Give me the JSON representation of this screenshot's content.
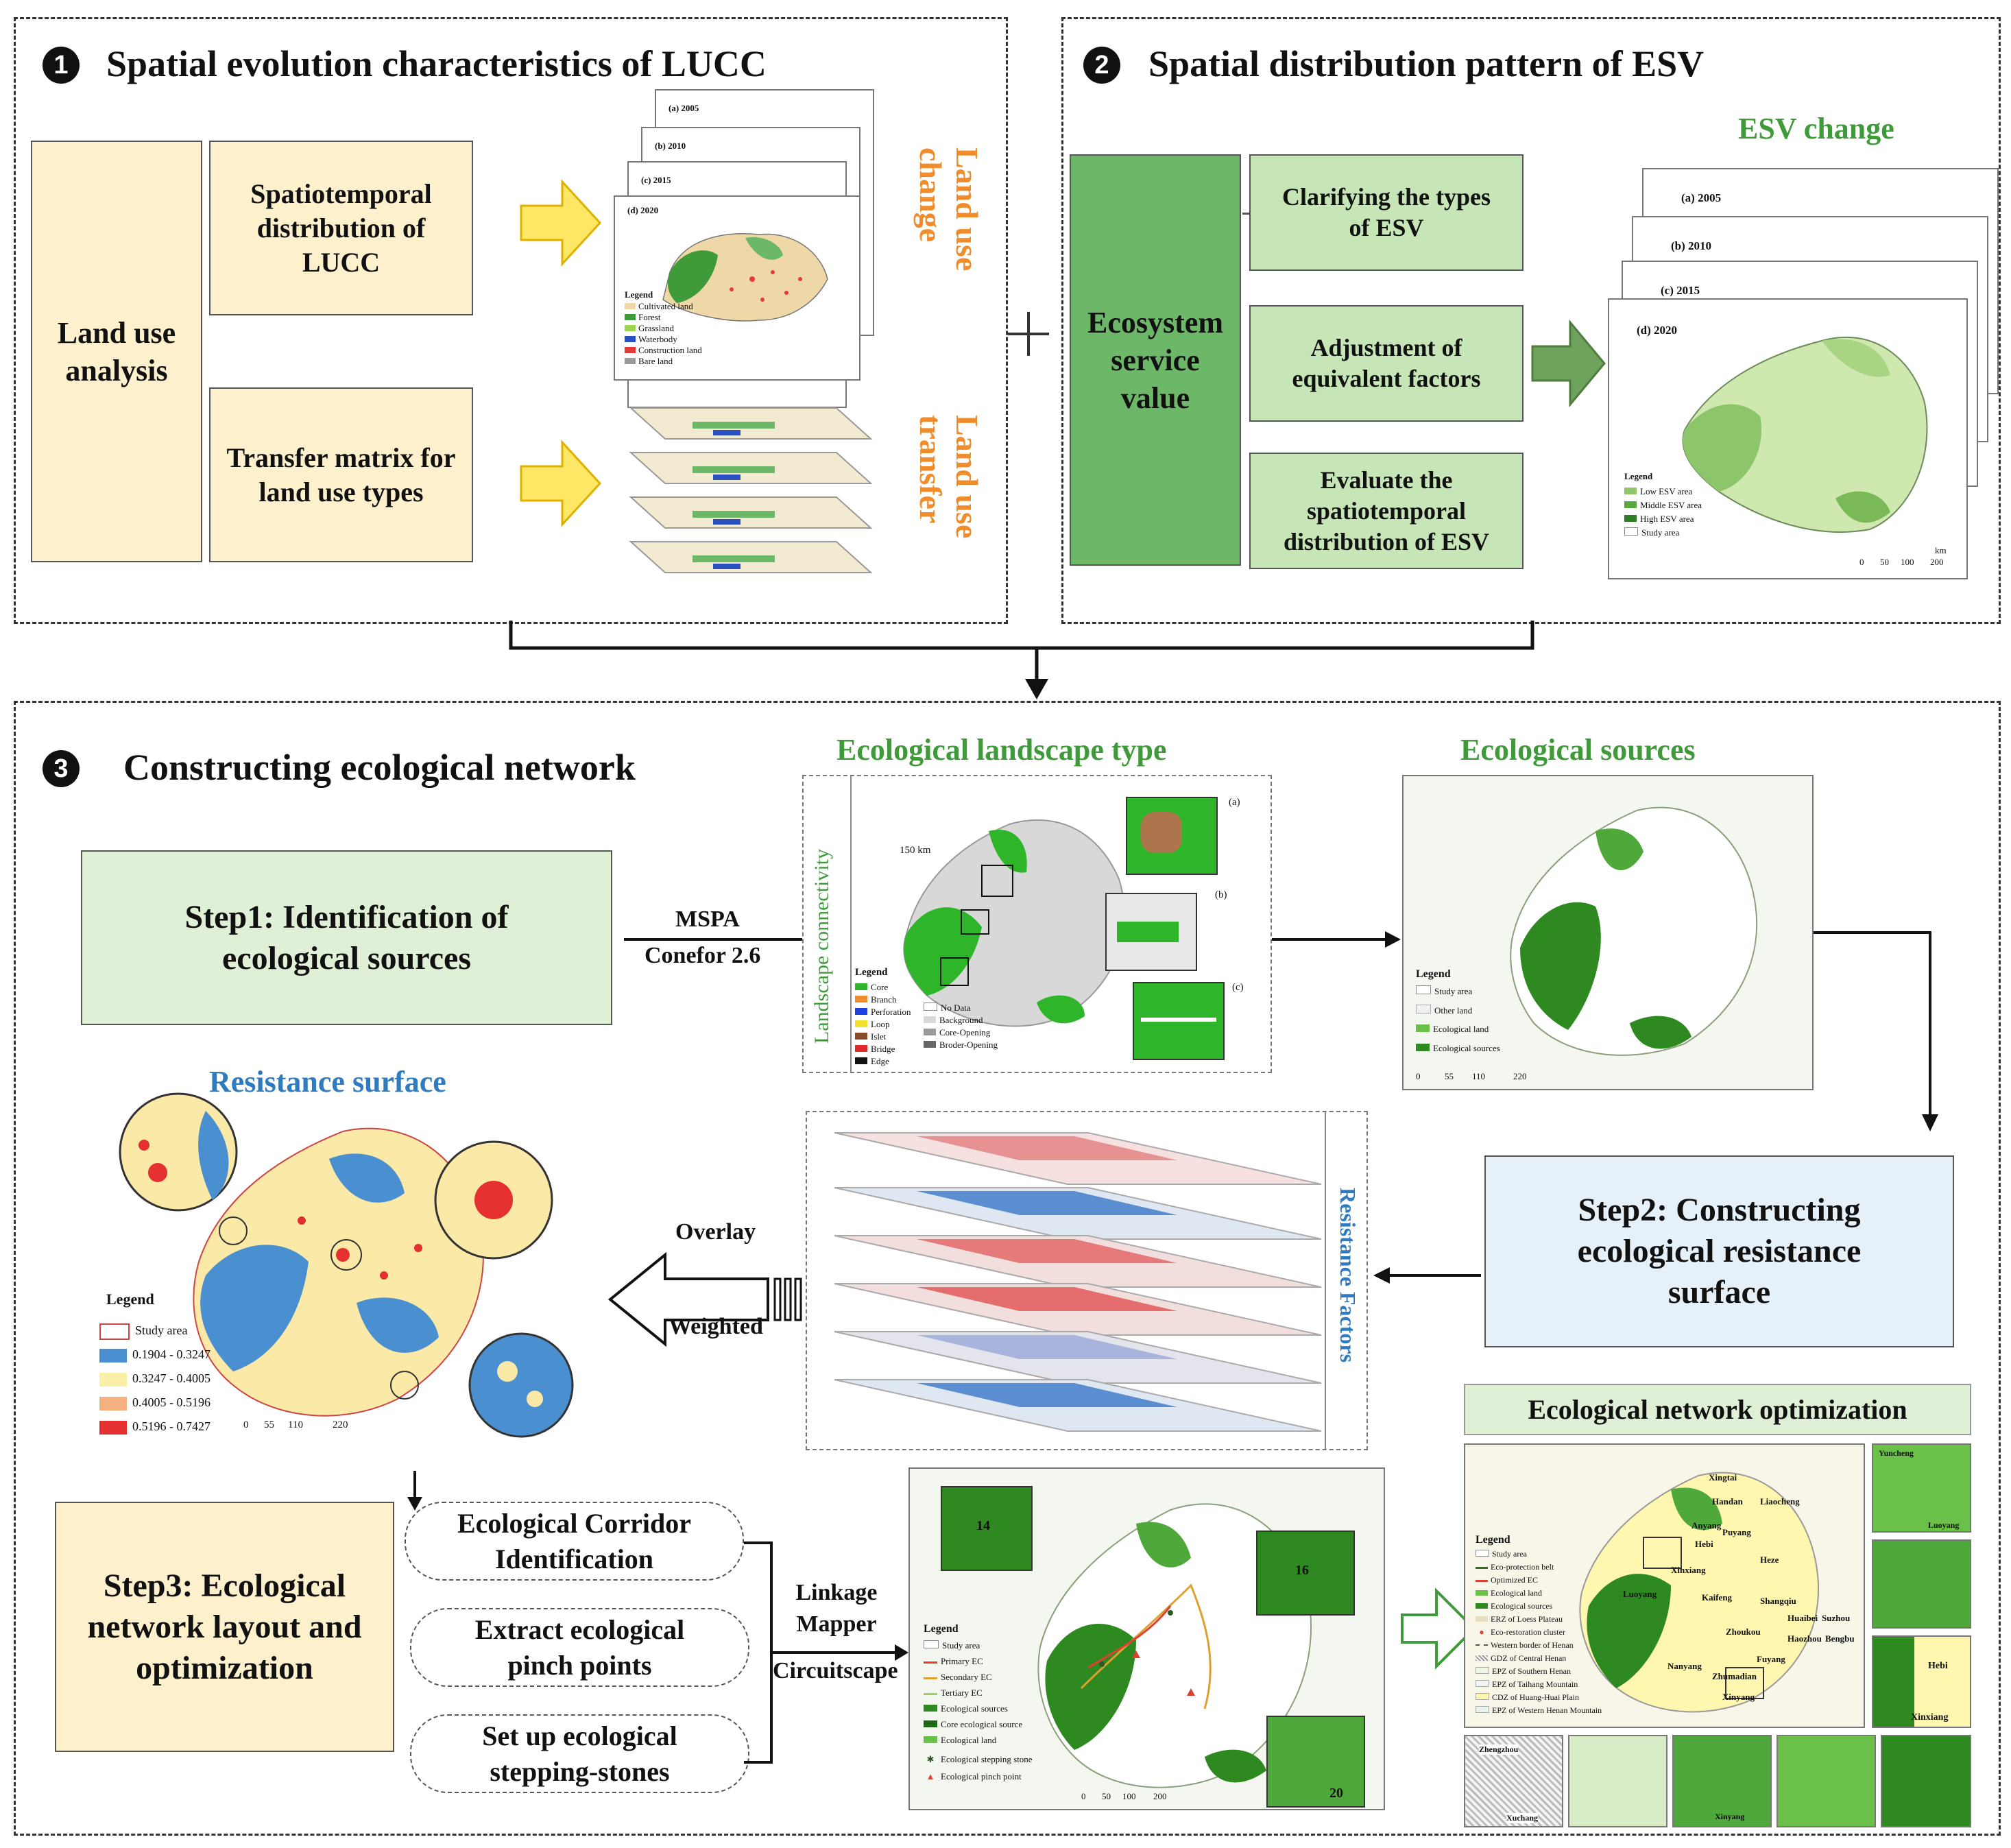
{
  "section1": {
    "number": "1",
    "title": "Spatial evolution characteristics of LUCC",
    "land_use_analysis": "Land use analysis",
    "box_spatiotemporal": "Spatiotemporal distribution of LUCC",
    "box_transfer": "Transfer matrix for land use types",
    "label_land_use_change": "Land use change",
    "label_land_use_transfer": "Land use transfer",
    "map_years": [
      "(a) 2005",
      "(b) 2010",
      "(c) 2015",
      "(d) 2020"
    ],
    "map_legend_title": "Legend",
    "map_legend": [
      "Cultivated land",
      "Forest",
      "Grassland",
      "Waterbody",
      "Construction land",
      "Bare land"
    ]
  },
  "section2": {
    "number": "2",
    "title": "Spatial distribution pattern of ESV",
    "ecosystem_service_value": "Ecosystem service value",
    "box_types": "Clarifying the types of ESV",
    "box_adjust": "Adjustment of equivalent factors",
    "box_evaluate": "Evaluate the spatiotemporal distribution of ESV",
    "esv_change": "ESV change",
    "map_years": [
      "(a) 2005",
      "(b) 2010",
      "(c) 2015",
      "(d) 2020"
    ],
    "legend_title": "Legend",
    "legend": [
      "Low ESV area",
      "Middle ESV area",
      "High ESV area",
      "Study area"
    ],
    "scale": [
      "0",
      "50",
      "100",
      "200",
      "km"
    ]
  },
  "section3": {
    "number": "3",
    "title": "Constructing ecological network",
    "step1": "Step1: Identification of ecological sources",
    "arrow_mspa": "MSPA",
    "arrow_conefor": "Conefor 2.6",
    "landscape_type_title": "Ecological landscape type",
    "landscape_connectivity": "Landscape connectivity",
    "landscape_legend_title": "Legend",
    "landscape_legend_left": [
      "Core",
      "Branch",
      "Perforation",
      "Loop",
      "Islet",
      "Bridge",
      "Edge"
    ],
    "landscape_legend_right": [
      "No Data",
      "Background",
      "Core-Opening",
      "Broder-Opening"
    ],
    "landscape_scale": "150 km",
    "inset_labels": [
      "(a)",
      "(b)",
      "(c)"
    ],
    "eco_sources_title": "Ecological sources",
    "eco_sources_legend_title": "Legend",
    "eco_sources_legend": [
      "Study area",
      "Other land",
      "Ecological land",
      "Ecological sources"
    ],
    "eco_sources_scale": [
      "0",
      "55",
      "110",
      "220"
    ],
    "resistance_title": "Resistance surface",
    "resistance_legend_title": "Legend",
    "resistance_legend": [
      "Study area",
      "0.1904 - 0.3247",
      "0.3247 - 0.4005",
      "0.4005 - 0.5196",
      "0.5196 - 0.7427"
    ],
    "resistance_scale": [
      "0",
      "55",
      "110",
      "220"
    ],
    "overlay": "Overlay",
    "weighted": "Weighted",
    "resistance_factors": "Resistance Factors",
    "step2": "Step2: Constructing ecological resistance surface",
    "step3": "Step3: Ecological network layout and optimization",
    "pill_corridor": "Ecological Corridor Identification",
    "pill_pinch": "Extract ecological pinch points",
    "pill_stepping": "Set up ecological stepping-stones",
    "linkage_mapper": "Linkage Mapper",
    "circuitscape": "Circuitscape",
    "network_legend_title": "Legend",
    "network_legend": [
      "Study area",
      "Primary EC",
      "Secondary EC",
      "Tertiary EC",
      "Ecological sources",
      "Core ecological source",
      "Ecological land",
      "Ecological stepping stone",
      "Ecological pinch point"
    ],
    "network_insets": [
      "14",
      "16",
      "20"
    ],
    "network_scale": [
      "0",
      "50",
      "100",
      "200"
    ],
    "optimization_title": "Ecological network optimization",
    "optimization_legend_title": "Legend",
    "optimization_legend": [
      "Study area",
      "Eco-protection belt",
      "Optimized EC",
      "Ecological land",
      "Ecological sources",
      "ERZ of Loess Plateau",
      "Eco-restoration cluster",
      "Western border of Henan",
      "GDZ of Central Henan",
      "EPZ of Southern Henan",
      "EPZ of Taihang Mountain",
      "CDZ of Huang-Huai Plain",
      "EPZ of Western Henan Mountain"
    ],
    "optimization_cities": [
      "Xingtai",
      "Handan",
      "Liaocheng",
      "Anyang",
      "Hebi",
      "Xinxiang",
      "Heze",
      "Kaifeng",
      "Shangqiu",
      "Zhoukou",
      "Huaibei",
      "Suzhou",
      "Bengbu",
      "Fuyang",
      "Nanyang",
      "Zhumadian",
      "Xinyang",
      "Luoyang",
      "Puyang",
      "Haozhou"
    ],
    "optimization_side_labels": [
      "Yuncheng",
      "Luoyang",
      "Hebi",
      "Xinxiang"
    ],
    "optimization_bottom_labels": [
      "Zhengzhou",
      "Xuchang",
      "Xinyang"
    ]
  },
  "colors": {
    "yellow_box": "#fdf0cc",
    "green_dark": "#6db868",
    "green_light": "#c6e6b8",
    "blue_pale": "#e6f0f8",
    "orange_label": "#f08c2c",
    "green_header": "#3f9b3a",
    "blue_header": "#2f7bc0"
  }
}
